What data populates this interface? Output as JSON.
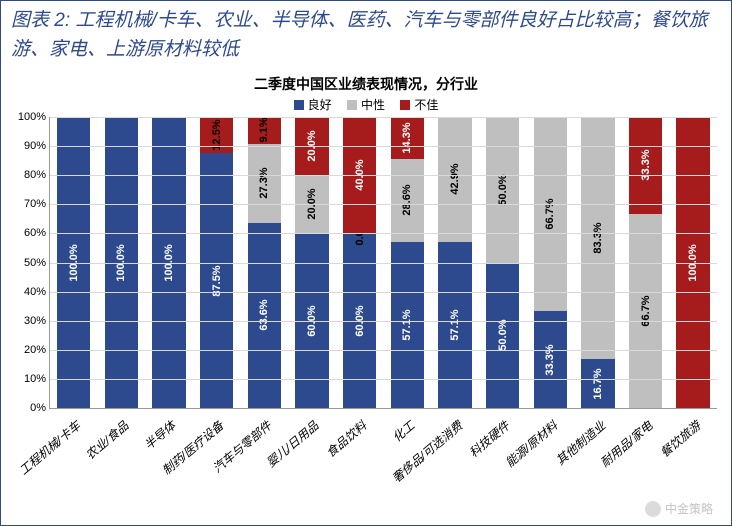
{
  "header": {
    "title": "图表 2: 工程机械/卡车、农业、半导体、医药、汽车与零部件良好占比较高；餐饮旅游、家电、上游原材料较低"
  },
  "chart": {
    "type": "stacked_bar_percent",
    "title": "二季度中国区业绩表现情况，分行业",
    "legend": [
      {
        "label": "良好",
        "color": "#2e4a8f"
      },
      {
        "label": "中性",
        "color": "#bfbfbf"
      },
      {
        "label": "不佳",
        "color": "#a61c1c"
      }
    ],
    "y_axis": {
      "min": 0,
      "max": 100,
      "step": 10,
      "suffix": "%"
    },
    "colors": {
      "good": "#2e4a8f",
      "neutral": "#bfbfbf",
      "bad": "#a61c1c",
      "grid": "#d9d9d9",
      "axis": "#999999",
      "bg": "#ffffff"
    },
    "label_fontsize": 11,
    "bar_width_pct": 70,
    "categories": [
      {
        "name": "工程机械/卡车",
        "good": 100.0,
        "neutral": 0.0,
        "bad": 0.0,
        "labels": {
          "good": "100.0%"
        }
      },
      {
        "name": "农业/食品",
        "good": 100.0,
        "neutral": 0.0,
        "bad": 0.0,
        "labels": {
          "good": "100.0%"
        }
      },
      {
        "name": "半导体",
        "good": 100.0,
        "neutral": 0.0,
        "bad": 0.0,
        "labels": {
          "good": "100.0%"
        }
      },
      {
        "name": "制药/医疗设备",
        "good": 87.5,
        "neutral": 0.0,
        "bad": 12.5,
        "labels": {
          "good": "87.5%",
          "bad": "12.5%"
        }
      },
      {
        "name": "汽车与零部件",
        "good": 63.6,
        "neutral": 27.3,
        "bad": 9.1,
        "labels": {
          "good": "63.6%",
          "neutral": "27.3%",
          "bad": "9.1%"
        }
      },
      {
        "name": "婴儿/日用品",
        "good": 60.0,
        "neutral": 20.0,
        "bad": 20.0,
        "labels": {
          "good": "60.0%",
          "neutral": "20.0%",
          "bad": "20.0%"
        }
      },
      {
        "name": "食品饮料",
        "good": 60.0,
        "neutral": 0.0,
        "bad": 40.0,
        "labels": {
          "good": "60.0%",
          "neutral": "0.0%",
          "bad": "40.0%"
        }
      },
      {
        "name": "化工",
        "good": 57.1,
        "neutral": 28.6,
        "bad": 14.3,
        "labels": {
          "good": "57.1%",
          "neutral": "28.6%",
          "bad": "14.3%"
        }
      },
      {
        "name": "奢侈品/可选消费",
        "good": 57.1,
        "neutral": 42.9,
        "bad": 0.0,
        "labels": {
          "good": "57.1%",
          "neutral": "42.9%"
        }
      },
      {
        "name": "科技硬件",
        "good": 50.0,
        "neutral": 50.0,
        "bad": 0.0,
        "labels": {
          "good": "50.0%",
          "neutral": "50.0%"
        }
      },
      {
        "name": "能源/原材料",
        "good": 33.3,
        "neutral": 66.7,
        "bad": 0.0,
        "labels": {
          "good": "33.3%",
          "neutral": "66.7%"
        }
      },
      {
        "name": "其他制造业",
        "good": 16.7,
        "neutral": 83.3,
        "bad": 0.0,
        "labels": {
          "good": "16.7%",
          "neutral": "83.3%"
        }
      },
      {
        "name": "耐用品/家电",
        "good": 0.0,
        "neutral": 66.7,
        "bad": 33.3,
        "labels": {
          "neutral": "66.7%",
          "bad": "33.3%"
        }
      },
      {
        "name": "餐饮旅游",
        "good": 0.0,
        "neutral": 0.0,
        "bad": 100.0,
        "labels": {
          "bad": "100.0%"
        }
      }
    ]
  },
  "watermark": {
    "text": "中金策略"
  }
}
